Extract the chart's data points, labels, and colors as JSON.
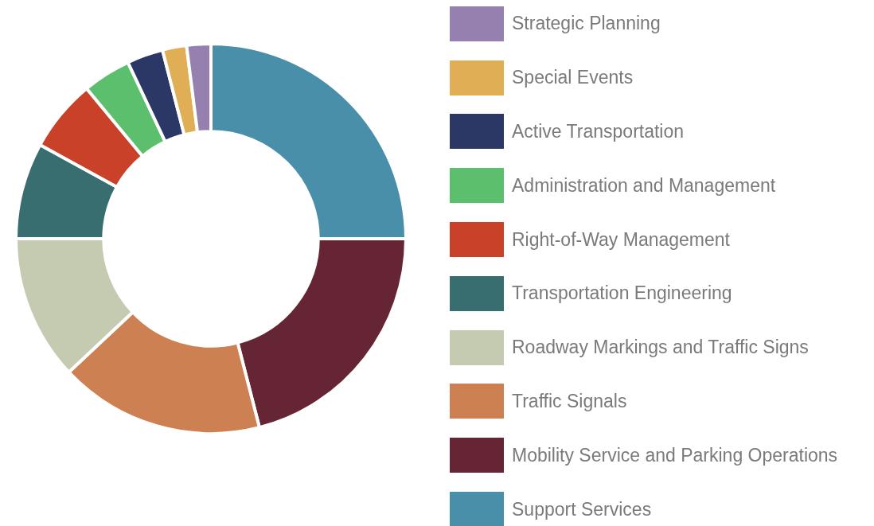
{
  "chart_data": {
    "type": "donut",
    "legend": "right",
    "categories": [
      "Support Services",
      "Mobility Service and Parking Operations",
      "Traffic Signals",
      "Roadway Markings and Traffic Signs",
      "Transportation Engineering",
      "Right-of-Way Management",
      "Administration and Management",
      "Active Transportation",
      "Special Events",
      "Strategic Planning"
    ],
    "values": [
      25,
      21,
      17,
      12,
      8,
      6,
      4,
      3,
      2,
      2
    ],
    "colors": [
      "#4a8faa",
      "#652535",
      "#cd8052",
      "#c5cbb0",
      "#386e6f",
      "#c94128",
      "#5bbf6e",
      "#2b3764",
      "#e0ae55",
      "#9580b0"
    ]
  }
}
